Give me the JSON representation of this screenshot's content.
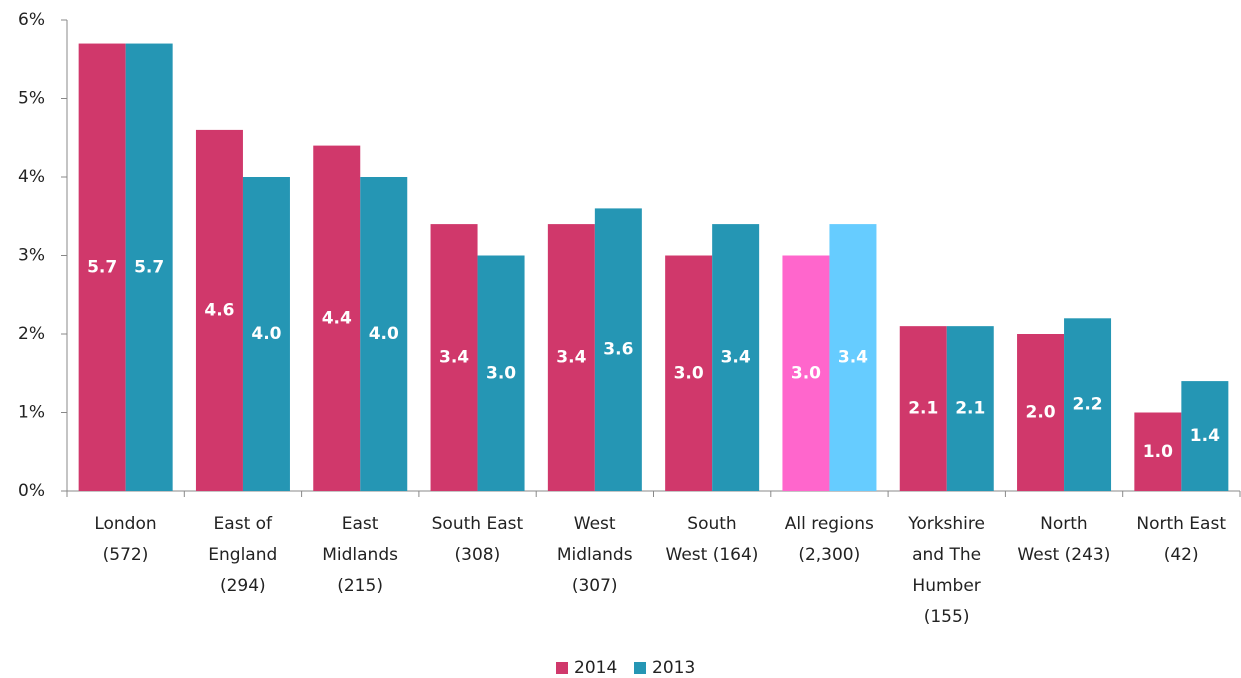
{
  "chart_data": {
    "type": "bar",
    "categories": [
      "London\n(572)",
      "East of\nEngland\n(294)",
      "East\nMidlands\n(215)",
      "South East\n(308)",
      "West\nMidlands\n(307)",
      "South\nWest (164)",
      "All regions\n(2,300)",
      "Yorkshire\nand The\nHumber\n(155)",
      "North\nWest (243)",
      "North East\n(42)"
    ],
    "series": [
      {
        "name": "2014",
        "color": "#d0386b",
        "colors": [
          "#d0386b",
          "#d0386b",
          "#d0386b",
          "#d0386b",
          "#d0386b",
          "#d0386b",
          "#ff66cc",
          "#d0386b",
          "#d0386b",
          "#d0386b"
        ],
        "values": [
          5.7,
          4.6,
          4.4,
          3.4,
          3.4,
          3.0,
          3.0,
          2.1,
          2.0,
          1.0
        ],
        "value_labels": [
          "5.7",
          "4.6",
          "4.4",
          "3.4",
          "3.4",
          "3.0",
          "3.0",
          "2.1",
          "2.0",
          "1.0"
        ]
      },
      {
        "name": "2013",
        "color": "#2596b4",
        "colors": [
          "#2596b4",
          "#2596b4",
          "#2596b4",
          "#2596b4",
          "#2596b4",
          "#2596b4",
          "#66ccff",
          "#2596b4",
          "#2596b4",
          "#2596b4"
        ],
        "values": [
          5.7,
          4.0,
          4.0,
          3.0,
          3.6,
          3.4,
          3.4,
          2.1,
          2.2,
          1.4
        ],
        "value_labels": [
          "5.7",
          "4.0",
          "4.0",
          "3.0",
          "3.6",
          "3.4",
          "3.4",
          "2.1",
          "2.2",
          "1.4"
        ]
      }
    ],
    "ylim": [
      0,
      6
    ],
    "yticks": [
      {
        "value": 0,
        "label": "0%"
      },
      {
        "value": 1,
        "label": "1%"
      },
      {
        "value": 2,
        "label": "2%"
      },
      {
        "value": 3,
        "label": "3%"
      },
      {
        "value": 4,
        "label": "4%"
      },
      {
        "value": 5,
        "label": "5%"
      },
      {
        "value": 6,
        "label": "6%"
      }
    ],
    "grid": false,
    "legend": "bottom"
  }
}
